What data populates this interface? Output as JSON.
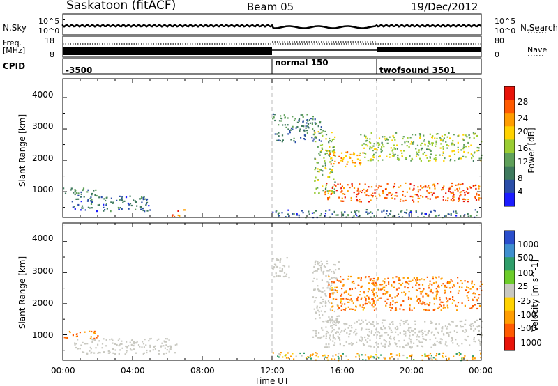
{
  "header": {
    "station": "Saskatoon (fitACF)",
    "beam": "Beam 05",
    "date": "19/Dec/2012"
  },
  "top_panels": {
    "nsky_label": "N.Sky",
    "nsearch_label": "N.Search",
    "freq_label_1": "Freq.",
    "freq_label_2": "[MHz]",
    "nave_label": "Nave",
    "cpid_label": "CPID",
    "noise_left_ticks": [
      "10^5",
      "10^0"
    ],
    "noise_right_ticks": [
      "10^5",
      "10^0"
    ],
    "freq_ticks": [
      "18",
      "8"
    ],
    "nave_ticks": [
      "80",
      "0"
    ],
    "cpid_segments": [
      {
        "label": "-3500",
        "start_hour": 0,
        "end_hour": 12
      },
      {
        "label": "normal 150",
        "start_hour": 12,
        "end_hour": 18
      },
      {
        "label": "twofsound 3501",
        "start_hour": 18,
        "end_hour": 24
      }
    ]
  },
  "chart_data": [
    {
      "type": "heatmap",
      "title": "",
      "xlabel": "Time UT",
      "ylabel": "Slant Range [km]",
      "xlim": [
        0,
        24
      ],
      "ylim": [
        180,
        4600
      ],
      "x_tick_labels": [
        "00:00",
        "04:00",
        "08:00",
        "12:00",
        "16:00",
        "20:00",
        "00:00"
      ],
      "y_tick_labels": [
        "1000",
        "2000",
        "3000",
        "4000"
      ],
      "colorbar": {
        "label": "Power [dB]",
        "range": [
          0,
          30
        ],
        "ticks": [
          "4",
          "8",
          "12",
          "16",
          "20",
          "24",
          "28"
        ],
        "colors": [
          "#1b1bff",
          "#2a4ea8",
          "#3f7a5e",
          "#5fa05a",
          "#9acd32",
          "#ffd200",
          "#ff9d00",
          "#ff5a00",
          "#e8140a"
        ]
      },
      "regions": [
        {
          "t_start": 0.0,
          "t_end": 2.0,
          "range_min": 900,
          "range_max": 1150,
          "level": 8
        },
        {
          "t_start": 0.5,
          "t_end": 5.0,
          "range_min": 400,
          "range_max": 900,
          "level": 6
        },
        {
          "t_start": 6.2,
          "t_end": 7.0,
          "range_min": 220,
          "range_max": 450,
          "level": 26
        },
        {
          "t_start": 12.0,
          "t_end": 14.8,
          "range_min": 2600,
          "range_max": 3500,
          "level": 8
        },
        {
          "t_start": 14.4,
          "t_end": 15.6,
          "range_min": 900,
          "range_max": 3000,
          "level": 14
        },
        {
          "t_start": 15.0,
          "t_end": 24.0,
          "range_min": 700,
          "range_max": 1300,
          "level": 26
        },
        {
          "t_start": 15.2,
          "t_end": 17.2,
          "range_min": 1800,
          "range_max": 2300,
          "level": 22
        },
        {
          "t_start": 17.0,
          "t_end": 24.0,
          "range_min": 2000,
          "range_max": 2900,
          "level": 14
        },
        {
          "t_start": 12.0,
          "t_end": 24.0,
          "range_min": 200,
          "range_max": 450,
          "level": 6
        }
      ]
    },
    {
      "type": "heatmap",
      "title": "",
      "xlabel": "Time UT",
      "ylabel": "Slant Range [km]",
      "xlim": [
        0,
        24
      ],
      "ylim": [
        180,
        4600
      ],
      "x_tick_labels": [
        "00:00",
        "04:00",
        "08:00",
        "12:00",
        "16:00",
        "20:00",
        "00:00"
      ],
      "y_tick_labels": [
        "1000",
        "2000",
        "3000",
        "4000"
      ],
      "colorbar": {
        "label": "Velocity [m s^-1]",
        "ticks": [
          "1000",
          "500",
          "100",
          "25",
          "-25",
          "-100",
          "-500",
          "-1000"
        ],
        "colors": [
          "#2a4ecc",
          "#3f8fcf",
          "#2f9e6a",
          "#6ccc2a",
          "#c8c8c0",
          "#ffd200",
          "#ff9d00",
          "#ff5a00",
          "#e8140a"
        ]
      },
      "regions": [
        {
          "t_start": 0.0,
          "t_end": 2.0,
          "range_min": 900,
          "range_max": 1150,
          "velocity": -300
        },
        {
          "t_start": 0.5,
          "t_end": 6.5,
          "range_min": 400,
          "range_max": 900,
          "velocity": 0
        },
        {
          "t_start": 12.0,
          "t_end": 13.0,
          "range_min": 2800,
          "range_max": 3500,
          "velocity": 0
        },
        {
          "t_start": 14.3,
          "t_end": 15.8,
          "range_min": 900,
          "range_max": 3400,
          "velocity": 0
        },
        {
          "t_start": 15.0,
          "t_end": 24.0,
          "range_min": 600,
          "range_max": 1500,
          "velocity": 0
        },
        {
          "t_start": 15.2,
          "t_end": 24.0,
          "range_min": 1800,
          "range_max": 2900,
          "velocity": -300
        },
        {
          "t_start": 12.0,
          "t_end": 24.0,
          "range_min": 200,
          "range_max": 450,
          "velocity": -60
        }
      ]
    }
  ]
}
